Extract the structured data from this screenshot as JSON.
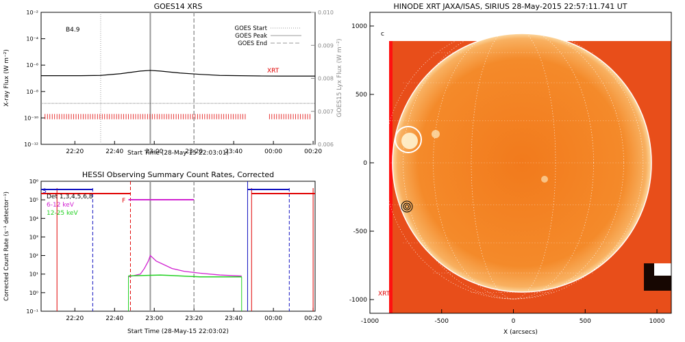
{
  "colors": {
    "axis": "#000000",
    "xrt": "#e00000",
    "gray": "#9a9a9a",
    "blue": "#1010c0",
    "magenta": "#d020d0",
    "green": "#20d020",
    "red": "#e00000",
    "white": "#ffffff",
    "sun": "#f07a1a"
  },
  "chart_data": [
    {
      "type": "line",
      "title": "GOES14 XRS",
      "xlabel": "Start Time (28-May-15 22:03:01)",
      "ylabel": "X-ray Flux (W m⁻²)",
      "ylabel_right": "GOES15 Lyx Flux (W m⁻²)",
      "x_ticks": [
        "22:20",
        "22:40",
        "23:00",
        "23:20",
        "23:40",
        "00:00",
        "00:20"
      ],
      "xlim_minutes": [
        0,
        138
      ],
      "ylim_log": [
        -12,
        -2
      ],
      "y_ticks": [
        "10⁻¹²",
        "10⁻¹⁰",
        "10⁻⁸",
        "10⁻⁶",
        "10⁻⁴",
        "10⁻²"
      ],
      "y_right_ticks": [
        "0.006",
        "0.007",
        "0.008",
        "0.009",
        "0.010"
      ],
      "ylim_right": [
        0.006,
        0.01
      ],
      "class_label": "B4.9",
      "legend": [
        "GOES Start",
        "GOES Peak",
        "GOES End"
      ],
      "series": [
        {
          "name": "XRT",
          "label": "XRT",
          "x_minutes": [
            0,
            20,
            30,
            40,
            50,
            55,
            60,
            70,
            80,
            90,
            100,
            110,
            120,
            138
          ],
          "log_values": [
            -6.8,
            -6.8,
            -6.78,
            -6.65,
            -6.45,
            -6.4,
            -6.45,
            -6.6,
            -6.7,
            -6.78,
            -6.8,
            -6.82,
            -6.83,
            -6.83
          ]
        },
        {
          "x_minutes": [
            0,
            138
          ],
          "log_values": [
            -8.9,
            -8.9
          ]
        }
      ],
      "events_minutes": {
        "start": 30,
        "peak": 55,
        "end": 77
      },
      "xrt_coverage_minutes": [
        [
          2,
          104
        ],
        [
          115,
          136
        ]
      ]
    },
    {
      "type": "line",
      "title": "HESSI Observing Summary Count Rates, Corrected",
      "xlabel": "Start Time (28-May-15 22:03:02)",
      "ylabel": "Corrected Count Rate (s⁻¹ detector⁻¹)",
      "x_ticks": [
        "22:20",
        "22:40",
        "23:00",
        "23:20",
        "23:40",
        "00:00",
        "00:20"
      ],
      "xlim_minutes": [
        0,
        138
      ],
      "ylim_log": [
        -1,
        6
      ],
      "y_ticks": [
        "10⁻¹",
        "10⁰",
        "10¹",
        "10²",
        "10³",
        "10⁴",
        "10⁵",
        "10⁶"
      ],
      "det_label": "Det 1,3,4,5,6,8",
      "series": [
        {
          "name": "6-12 keV",
          "x_minutes": [
            44,
            50,
            52,
            54,
            55,
            58,
            62,
            66,
            72,
            80,
            90,
            100,
            101
          ],
          "log_values": [
            0.85,
            1.0,
            1.3,
            1.7,
            2.0,
            1.7,
            1.5,
            1.3,
            1.15,
            1.05,
            0.95,
            0.9,
            0.9
          ]
        },
        {
          "name": "12-25 keV",
          "x_minutes": [
            44,
            60,
            80,
            101
          ],
          "log_values": [
            0.9,
            0.95,
            0.85,
            0.85
          ]
        }
      ],
      "flags": {
        "S": "S",
        "F": "F"
      }
    },
    {
      "type": "heatmap",
      "title": "HINODE XRT JAXA/ISAS, SIRIUS 28-May-2015 22:57:11.741 UT",
      "xlabel": "X (arcsecs)",
      "x_ticks": [
        "-1000",
        "-500",
        "0",
        "500",
        "1000"
      ],
      "y_ticks": [
        "1000",
        "500",
        "0",
        "-500",
        "-1000"
      ],
      "xlim": [
        -1000,
        1100
      ],
      "ylim": [
        -1100,
        1100
      ],
      "solar_radius": 950,
      "labels": {
        "xrt": "XRT",
        "c": "c"
      }
    }
  ]
}
